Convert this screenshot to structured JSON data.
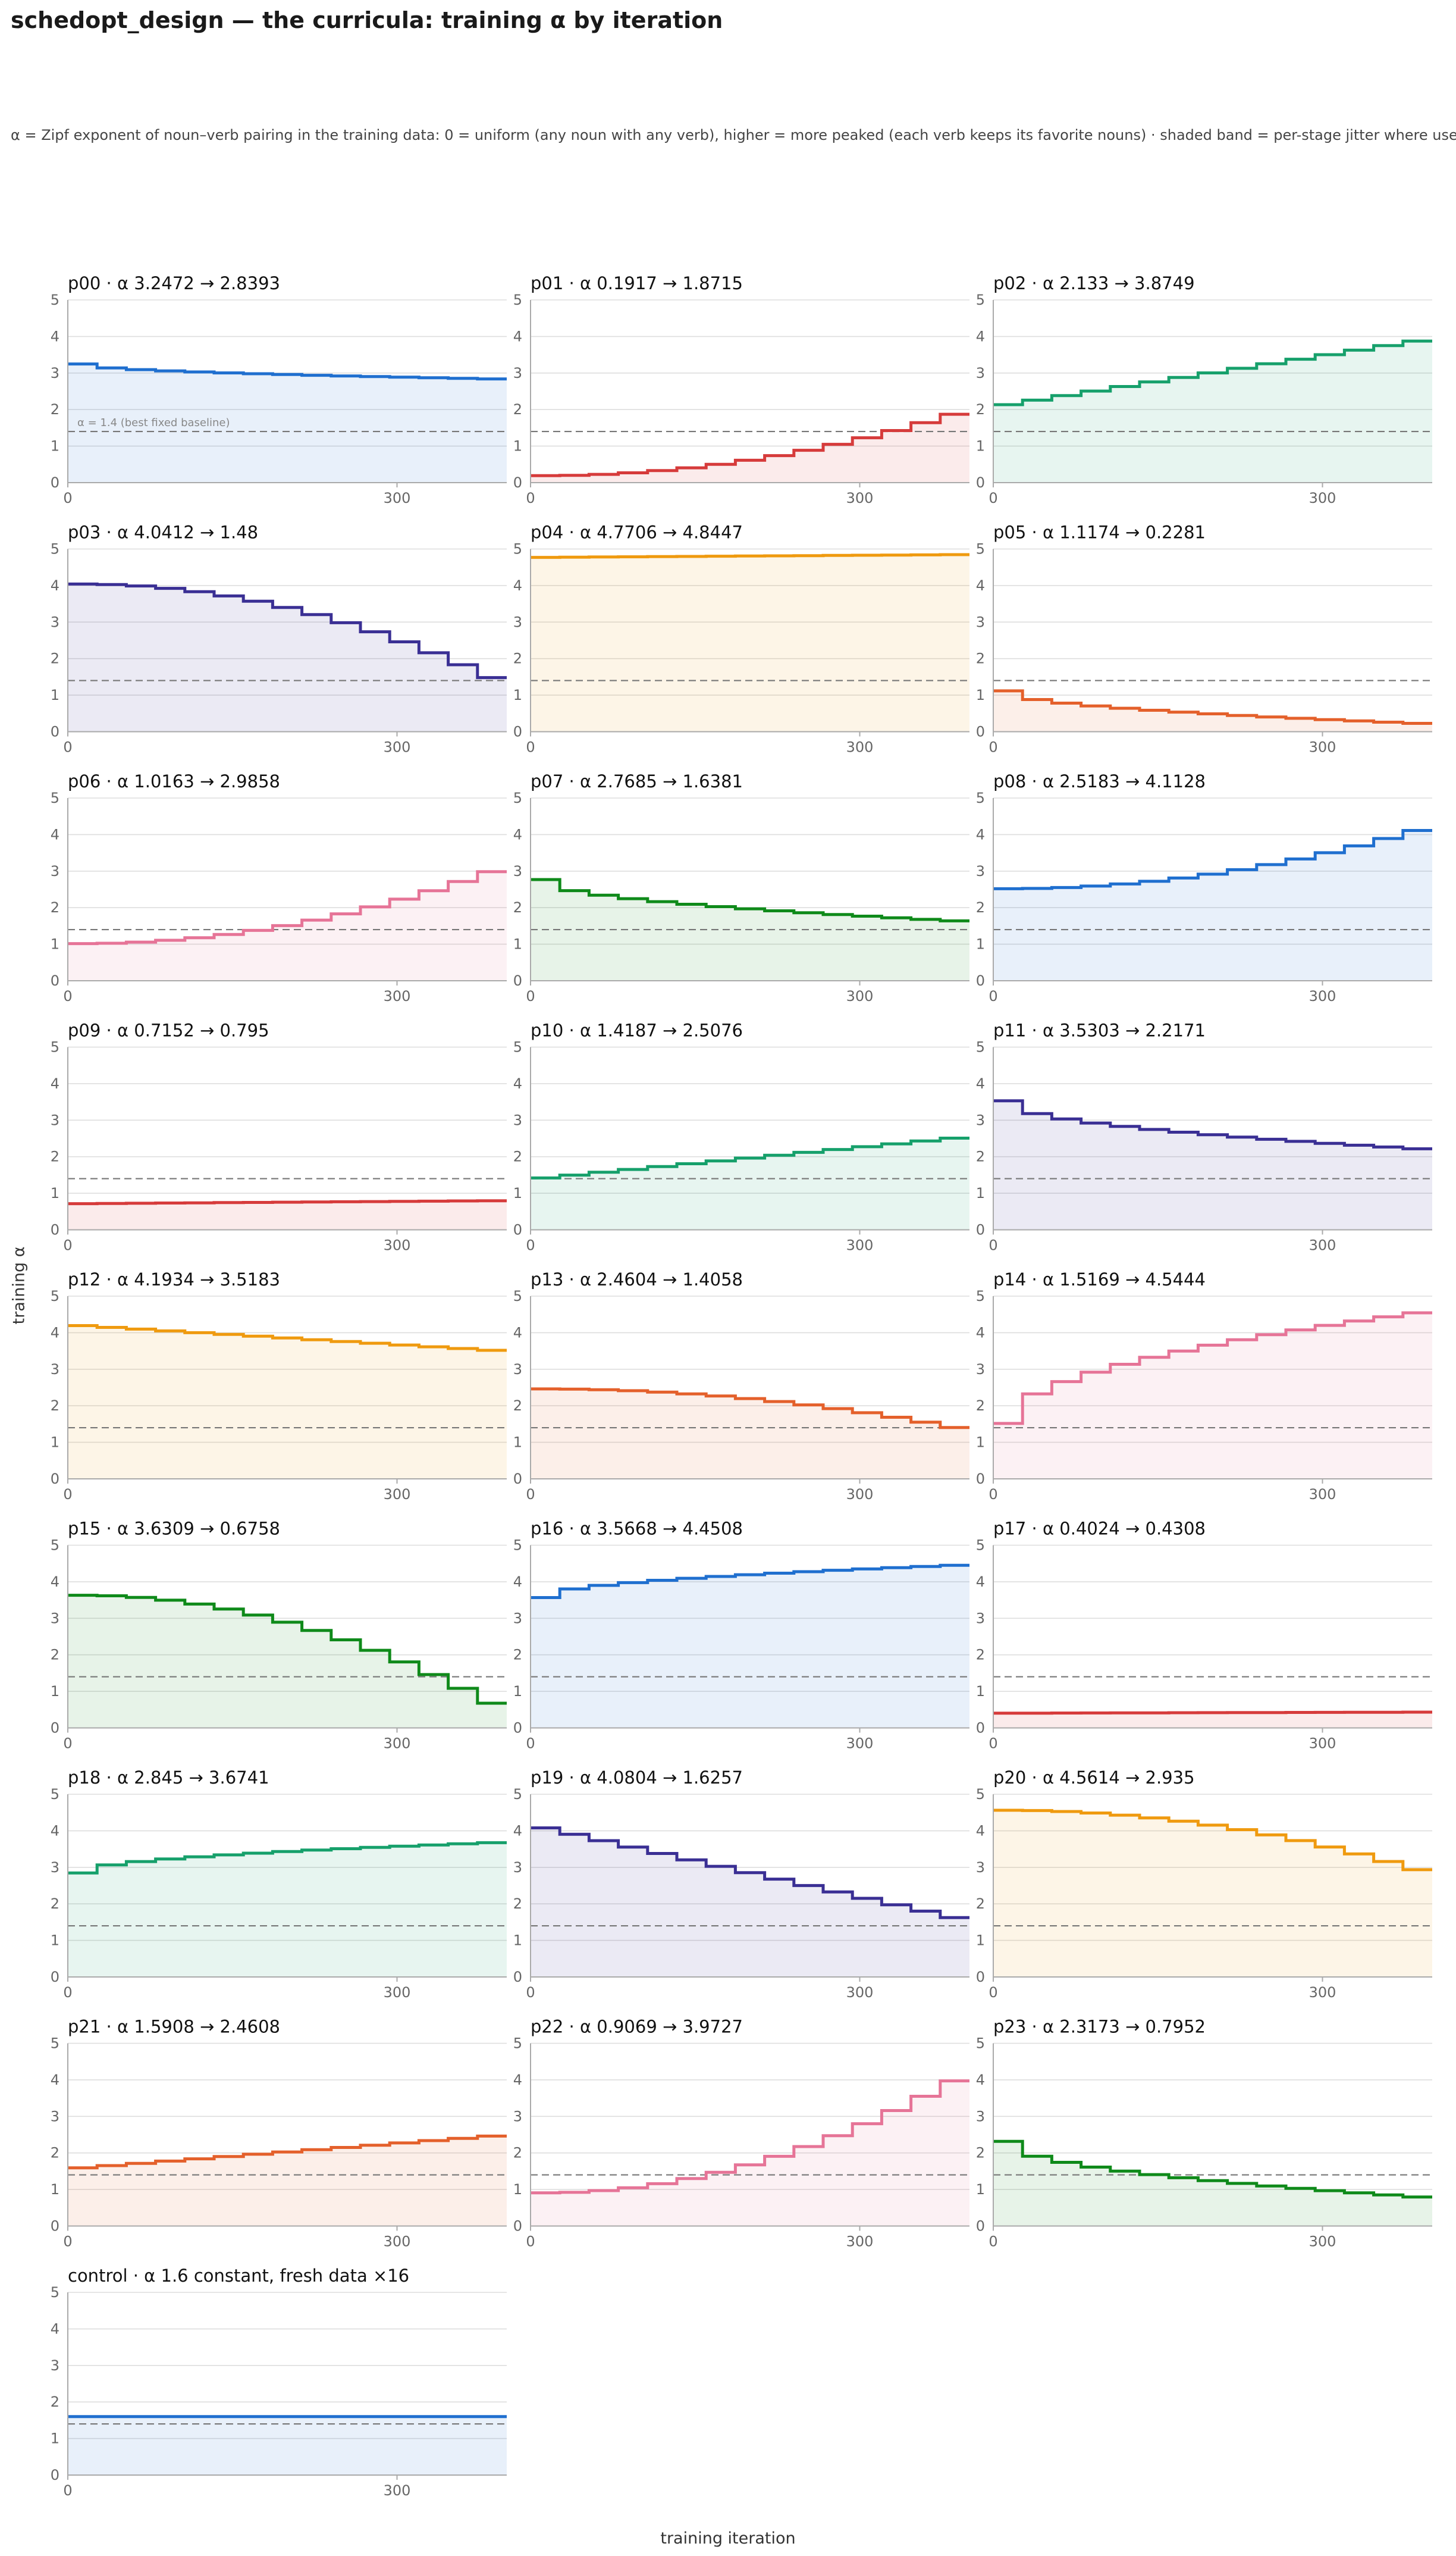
{
  "title": "schedopt_design — the curricula: training α by iteration",
  "subtitle": "α = Zipf exponent of noun–verb pairing in the training data: 0 = uniform (any noun with any verb), higher = more peaked (each verb keeps its favorite nouns) · shaded band = per-stage jitter where used",
  "chart_data": {
    "type": "line",
    "step": true,
    "xlabel": "training iteration",
    "ylabel": "training α",
    "xlim": [
      0,
      400
    ],
    "ylim": [
      0,
      5
    ],
    "xticks": [
      0,
      300
    ],
    "yticks": [
      0,
      1,
      2,
      3,
      4,
      5
    ],
    "grid": true,
    "baseline": {
      "value": 1.4,
      "label": "α = 1.4 (best fixed baseline)"
    },
    "panels": [
      {
        "name": "p00",
        "label": "α 3.2472 → 2.8393",
        "start": 3.2472,
        "end": 2.8393,
        "shape": "decel",
        "color": "#1f6fcf"
      },
      {
        "name": "p01",
        "label": "α 0.1917 → 1.8715",
        "start": 0.1917,
        "end": 1.8715,
        "shape": "accel",
        "color": "#d63b3b"
      },
      {
        "name": "p02",
        "label": "α 2.133 → 3.8749",
        "start": 2.133,
        "end": 3.8749,
        "shape": "linear",
        "color": "#16a06b"
      },
      {
        "name": "p03",
        "label": "α 4.0412 → 1.48",
        "start": 4.0412,
        "end": 1.48,
        "shape": "accel",
        "color": "#3a2f94"
      },
      {
        "name": "p04",
        "label": "α 4.7706 → 4.8447",
        "start": 4.7706,
        "end": 4.8447,
        "shape": "linear",
        "color": "#ef9a0f"
      },
      {
        "name": "p05",
        "label": "α 1.1174 → 0.2281",
        "start": 1.1174,
        "end": 0.2281,
        "shape": "decel",
        "color": "#e4602b"
      },
      {
        "name": "p06",
        "label": "α 1.0163 → 2.9858",
        "start": 1.0163,
        "end": 2.9858,
        "shape": "accel",
        "color": "#e67497"
      },
      {
        "name": "p07",
        "label": "α 2.7685 → 1.6381",
        "start": 2.7685,
        "end": 1.6381,
        "shape": "decel",
        "color": "#0f8a1a"
      },
      {
        "name": "p08",
        "label": "α 2.5183 → 4.1128",
        "start": 2.5183,
        "end": 4.1128,
        "shape": "accel",
        "color": "#1f6fcf"
      },
      {
        "name": "p09",
        "label": "α 0.7152 → 0.795",
        "start": 0.7152,
        "end": 0.795,
        "shape": "linear",
        "color": "#d63b3b"
      },
      {
        "name": "p10",
        "label": "α 1.4187 → 2.5076",
        "start": 1.4187,
        "end": 2.5076,
        "shape": "linear",
        "color": "#16a06b"
      },
      {
        "name": "p11",
        "label": "α 3.5303 → 2.2171",
        "start": 3.5303,
        "end": 2.2171,
        "shape": "decel",
        "color": "#3a2f94"
      },
      {
        "name": "p12",
        "label": "α 4.1934 → 3.5183",
        "start": 4.1934,
        "end": 3.5183,
        "shape": "linear",
        "color": "#ef9a0f"
      },
      {
        "name": "p13",
        "label": "α 2.4604 → 1.4058",
        "start": 2.4604,
        "end": 1.4058,
        "shape": "accel",
        "color": "#e4602b"
      },
      {
        "name": "p14",
        "label": "α 1.5169 → 4.5444",
        "start": 1.5169,
        "end": 4.5444,
        "shape": "decel",
        "color": "#e67497"
      },
      {
        "name": "p15",
        "label": "α 3.6309 → 0.6758",
        "start": 3.6309,
        "end": 0.6758,
        "shape": "accel",
        "color": "#0f8a1a"
      },
      {
        "name": "p16",
        "label": "α 3.5668 → 4.4508",
        "start": 3.5668,
        "end": 4.4508,
        "shape": "decel",
        "color": "#1f6fcf"
      },
      {
        "name": "p17",
        "label": "α 0.4024 → 0.4308",
        "start": 0.4024,
        "end": 0.4308,
        "shape": "linear",
        "color": "#d63b3b"
      },
      {
        "name": "p18",
        "label": "α 2.845 → 3.6741",
        "start": 2.845,
        "end": 3.6741,
        "shape": "decel",
        "color": "#16a06b"
      },
      {
        "name": "p19",
        "label": "α 4.0804 → 1.6257",
        "start": 4.0804,
        "end": 1.6257,
        "shape": "linear",
        "color": "#3a2f94"
      },
      {
        "name": "p20",
        "label": "α 4.5614 → 2.935",
        "start": 4.5614,
        "end": 2.935,
        "shape": "accel",
        "color": "#ef9a0f"
      },
      {
        "name": "p21",
        "label": "α 1.5908 → 2.4608",
        "start": 1.5908,
        "end": 2.4608,
        "shape": "linear",
        "color": "#e4602b"
      },
      {
        "name": "p22",
        "label": "α 0.9069 → 3.9727",
        "start": 0.9069,
        "end": 3.9727,
        "shape": "accel",
        "color": "#e67497"
      },
      {
        "name": "p23",
        "label": "α 2.3173 → 0.7952",
        "start": 2.3173,
        "end": 0.7952,
        "shape": "decel",
        "color": "#0f8a1a"
      },
      {
        "name": "control",
        "label": "α 1.6 constant, fresh data ×16",
        "start": 1.6,
        "end": 1.6,
        "shape": "linear",
        "color": "#1f6fcf"
      }
    ]
  }
}
